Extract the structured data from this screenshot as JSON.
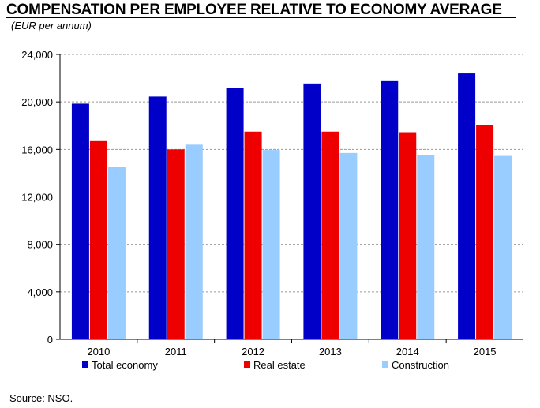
{
  "chart_data": {
    "type": "bar",
    "title": "COMPENSATION PER EMPLOYEE RELATIVE TO ECONOMY AVERAGE",
    "subtitle": "(EUR per annum)",
    "categories": [
      "2010",
      "2011",
      "2012",
      "2013",
      "2014",
      "2015"
    ],
    "series": [
      {
        "name": "Total economy",
        "values": [
          19850,
          20450,
          21200,
          21550,
          21750,
          22400
        ]
      },
      {
        "name": "Real estate",
        "values": [
          16700,
          16000,
          17500,
          17500,
          17450,
          18050
        ]
      },
      {
        "name": "Construction",
        "values": [
          14550,
          16400,
          15950,
          15700,
          15550,
          15450
        ]
      }
    ],
    "ylim": [
      0,
      24000
    ],
    "yticks": [
      0,
      4000,
      8000,
      12000,
      16000,
      20000,
      24000
    ],
    "ytick_labels": [
      "0",
      "4,000",
      "8,000",
      "12,000",
      "16,000",
      "20,000",
      "24,000"
    ],
    "grid": true,
    "legend": "bottom",
    "source": "Source: NSO."
  },
  "colors": {
    "Total economy": "#0000c8",
    "Real estate": "#ee0000",
    "Construction": "#99ccff",
    "grid": "#999999"
  }
}
